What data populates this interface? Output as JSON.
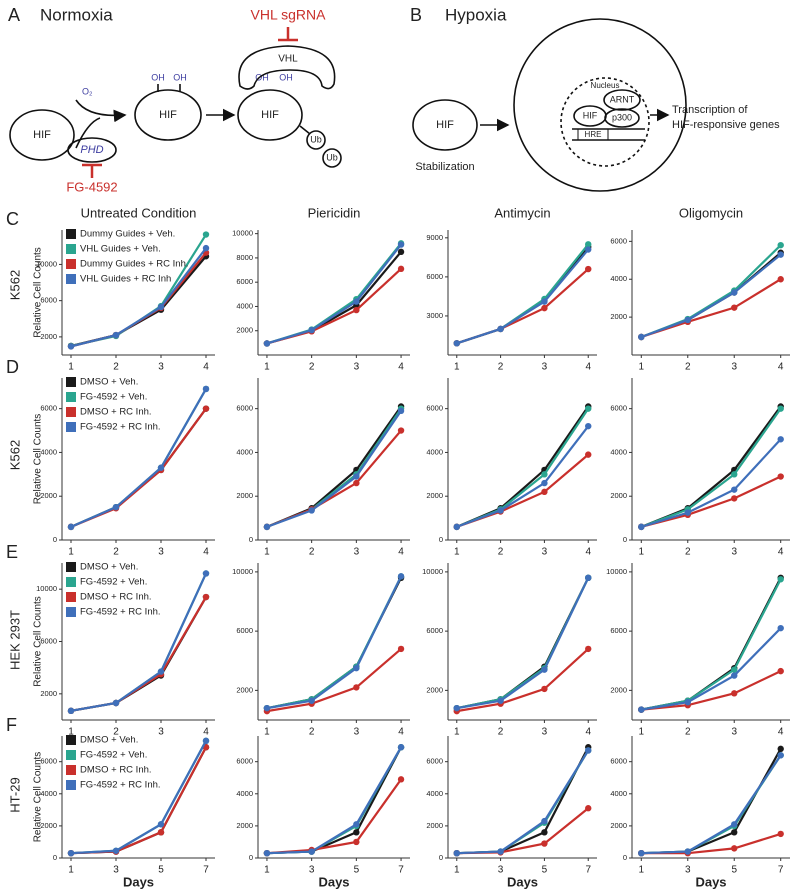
{
  "panels": {
    "a": {
      "letter": "A",
      "title": "Normoxia",
      "hif": [
        "HIF",
        "HIF",
        "HIF"
      ],
      "o2": "O₂",
      "oh": [
        "OH",
        "OH",
        "OH",
        "OH"
      ],
      "vhl": "VHL",
      "sgrna": "VHL sgRNA",
      "ub": [
        "Ub",
        "Ub"
      ],
      "phd": "PHD",
      "drug": "FG-4592"
    },
    "b": {
      "letter": "B",
      "title": "Hypoxia",
      "hif": [
        "HIF",
        "HIF"
      ],
      "stabilization": "Stabilization",
      "nucleus": "Nucleus",
      "arnt": "ARNT",
      "p300": "p300",
      "hre": "HRE",
      "transcription": [
        "Transcription of",
        "HIF-responsive genes"
      ]
    }
  },
  "rows": [
    {
      "letter": "C",
      "cell_line": "K562"
    },
    {
      "letter": "D",
      "cell_line": "K562"
    },
    {
      "letter": "E",
      "cell_line": "HEK 293T"
    },
    {
      "letter": "F",
      "cell_line": "HT-29"
    }
  ],
  "chart_data": [
    {
      "type": "line",
      "title": "Untreated Condition",
      "ylabel": "Relative Cell Counts",
      "legend": "upper left",
      "x": [
        1,
        2,
        3,
        4
      ],
      "xlim": [
        0.8,
        4.2
      ],
      "xticks": [
        1,
        2,
        3,
        4
      ],
      "ylim": [
        0,
        13800
      ],
      "yticks": [
        2000,
        6000,
        10000
      ],
      "series": [
        {
          "name": "Dummy Guides + Veh.",
          "color": "#1a1a1a",
          "values": [
            1000,
            2200,
            5000,
            10900
          ]
        },
        {
          "name": "VHL Guides + Veh.",
          "color": "#2aa58f",
          "values": [
            1000,
            2100,
            5400,
            13300
          ]
        },
        {
          "name": "Dummy Guides + RC Inh.",
          "color": "#c9302c",
          "values": [
            950,
            2200,
            5200,
            11300
          ]
        },
        {
          "name": "VHL Guides + RC Inh",
          "color": "#3f6fba",
          "values": [
            950,
            2200,
            5300,
            11800
          ]
        }
      ]
    },
    {
      "type": "line",
      "title": "Piericidin",
      "x": [
        1,
        2,
        3,
        4
      ],
      "xlim": [
        0.8,
        4.2
      ],
      "xticks": [
        1,
        2,
        3,
        4
      ],
      "ylim": [
        0,
        10300
      ],
      "yticks": [
        2000,
        4000,
        6000,
        8000,
        10000
      ],
      "series": [
        {
          "color": "#1a1a1a",
          "values": [
            950,
            2000,
            4100,
            8500
          ]
        },
        {
          "color": "#2aa58f",
          "values": [
            950,
            2100,
            4600,
            9200
          ]
        },
        {
          "color": "#c9302c",
          "values": [
            950,
            1950,
            3700,
            7100
          ]
        },
        {
          "color": "#3f6fba",
          "values": [
            950,
            2050,
            4400,
            9100
          ]
        }
      ]
    },
    {
      "type": "line",
      "title": "Antimycin",
      "x": [
        1,
        2,
        3,
        4
      ],
      "xlim": [
        0.8,
        4.2
      ],
      "xticks": [
        1,
        2,
        3,
        4
      ],
      "ylim": [
        0,
        9600
      ],
      "yticks": [
        3000,
        6000,
        9000
      ],
      "series": [
        {
          "color": "#1a1a1a",
          "values": [
            900,
            2000,
            4200,
            8300
          ]
        },
        {
          "color": "#2aa58f",
          "values": [
            900,
            2000,
            4300,
            8500
          ]
        },
        {
          "color": "#c9302c",
          "values": [
            900,
            2000,
            3600,
            6600
          ]
        },
        {
          "color": "#3f6fba",
          "values": [
            900,
            2000,
            4100,
            8100
          ]
        }
      ]
    },
    {
      "type": "line",
      "title": "Oligomycin",
      "x": [
        1,
        2,
        3,
        4
      ],
      "xlim": [
        0.8,
        4.2
      ],
      "xticks": [
        1,
        2,
        3,
        4
      ],
      "ylim": [
        0,
        6600
      ],
      "yticks": [
        2000,
        4000,
        6000
      ],
      "series": [
        {
          "color": "#1a1a1a",
          "values": [
            950,
            1850,
            3300,
            5400
          ]
        },
        {
          "color": "#2aa58f",
          "values": [
            950,
            1900,
            3400,
            5800
          ]
        },
        {
          "color": "#c9302c",
          "values": [
            950,
            1750,
            2500,
            4000
          ]
        },
        {
          "color": "#3f6fba",
          "values": [
            950,
            1850,
            3300,
            5300
          ]
        }
      ]
    },
    {
      "type": "line",
      "ylabel": "Relative Cell Counts",
      "legend": "upper left",
      "x": [
        1,
        2,
        3,
        4
      ],
      "xlim": [
        0.8,
        4.2
      ],
      "xticks": [
        1,
        2,
        3,
        4
      ],
      "ylim": [
        0,
        7400
      ],
      "yticks": [
        0,
        2000,
        4000,
        6000
      ],
      "series": [
        {
          "name": "DMSO + Veh.",
          "color": "#1a1a1a",
          "values": [
            600,
            1500,
            3200,
            6000
          ]
        },
        {
          "name": "FG-4592 + Veh.",
          "color": "#2aa58f",
          "values": [
            600,
            1500,
            3300,
            6900
          ]
        },
        {
          "name": "DMSO + RC Inh.",
          "color": "#c9302c",
          "values": [
            600,
            1450,
            3200,
            6000
          ]
        },
        {
          "name": "FG-4592 + RC Inh.",
          "color": "#3f6fba",
          "values": [
            600,
            1500,
            3300,
            6900
          ]
        }
      ]
    },
    {
      "type": "line",
      "x": [
        1,
        2,
        3,
        4
      ],
      "xlim": [
        0.8,
        4.2
      ],
      "xticks": [
        1,
        2,
        3,
        4
      ],
      "ylim": [
        0,
        7400
      ],
      "yticks": [
        0,
        2000,
        4000,
        6000
      ],
      "series": [
        {
          "color": "#1a1a1a",
          "values": [
            600,
            1450,
            3200,
            6100
          ]
        },
        {
          "color": "#2aa58f",
          "values": [
            600,
            1400,
            3000,
            6000
          ]
        },
        {
          "color": "#c9302c",
          "values": [
            600,
            1400,
            2600,
            5000
          ]
        },
        {
          "color": "#3f6fba",
          "values": [
            600,
            1350,
            2900,
            5900
          ]
        }
      ]
    },
    {
      "type": "line",
      "x": [
        1,
        2,
        3,
        4
      ],
      "xlim": [
        0.8,
        4.2
      ],
      "xticks": [
        1,
        2,
        3,
        4
      ],
      "ylim": [
        0,
        7400
      ],
      "yticks": [
        0,
        2000,
        4000,
        6000
      ],
      "series": [
        {
          "color": "#1a1a1a",
          "values": [
            600,
            1450,
            3200,
            6100
          ]
        },
        {
          "color": "#2aa58f",
          "values": [
            600,
            1400,
            3000,
            6000
          ]
        },
        {
          "color": "#c9302c",
          "values": [
            600,
            1300,
            2200,
            3900
          ]
        },
        {
          "color": "#3f6fba",
          "values": [
            600,
            1350,
            2600,
            5200
          ]
        }
      ]
    },
    {
      "type": "line",
      "x": [
        1,
        2,
        3,
        4
      ],
      "xlim": [
        0.8,
        4.2
      ],
      "xticks": [
        1,
        2,
        3,
        4
      ],
      "ylim": [
        0,
        7400
      ],
      "yticks": [
        0,
        2000,
        4000,
        6000
      ],
      "series": [
        {
          "color": "#1a1a1a",
          "values": [
            600,
            1450,
            3200,
            6100
          ]
        },
        {
          "color": "#2aa58f",
          "values": [
            600,
            1400,
            3000,
            6000
          ]
        },
        {
          "color": "#c9302c",
          "values": [
            600,
            1150,
            1900,
            2900
          ]
        },
        {
          "color": "#3f6fba",
          "values": [
            600,
            1250,
            2300,
            4600
          ]
        }
      ]
    },
    {
      "type": "line",
      "ylabel": "Relative Cell Counts",
      "legend": "upper left",
      "x": [
        1,
        2,
        3,
        4
      ],
      "xlim": [
        0.8,
        4.2
      ],
      "xticks": [
        1,
        2,
        3,
        4
      ],
      "ylim": [
        0,
        12000
      ],
      "yticks": [
        2000,
        6000,
        10000
      ],
      "series": [
        {
          "name": "DMSO + Veh.",
          "color": "#1a1a1a",
          "values": [
            700,
            1300,
            3400,
            9400
          ]
        },
        {
          "name": "FG-4592 + Veh.",
          "color": "#2aa58f",
          "values": [
            700,
            1300,
            3700,
            11200
          ]
        },
        {
          "name": "DMSO + RC Inh.",
          "color": "#c9302c",
          "values": [
            700,
            1300,
            3500,
            9400
          ]
        },
        {
          "name": "FG-4592 + RC Inh.",
          "color": "#3f6fba",
          "values": [
            700,
            1300,
            3700,
            11200
          ]
        }
      ]
    },
    {
      "type": "line",
      "x": [
        1,
        2,
        3,
        4
      ],
      "xlim": [
        0.8,
        4.2
      ],
      "xticks": [
        1,
        2,
        3,
        4
      ],
      "ylim": [
        0,
        10600
      ],
      "yticks": [
        2000,
        6000,
        10000
      ],
      "series": [
        {
          "color": "#1a1a1a",
          "values": [
            800,
            1400,
            3600,
            9600
          ]
        },
        {
          "color": "#2aa58f",
          "values": [
            800,
            1400,
            3600,
            9700
          ]
        },
        {
          "color": "#c9302c",
          "values": [
            600,
            1100,
            2200,
            4800
          ]
        },
        {
          "color": "#3f6fba",
          "values": [
            800,
            1300,
            3500,
            9700
          ]
        }
      ]
    },
    {
      "type": "line",
      "x": [
        1,
        2,
        3,
        4
      ],
      "xlim": [
        0.8,
        4.2
      ],
      "xticks": [
        1,
        2,
        3,
        4
      ],
      "ylim": [
        0,
        10600
      ],
      "yticks": [
        2000,
        6000,
        10000
      ],
      "series": [
        {
          "color": "#1a1a1a",
          "values": [
            800,
            1400,
            3600,
            9600
          ]
        },
        {
          "color": "#2aa58f",
          "values": [
            800,
            1400,
            3500,
            9600
          ]
        },
        {
          "color": "#c9302c",
          "values": [
            600,
            1100,
            2100,
            4800
          ]
        },
        {
          "color": "#3f6fba",
          "values": [
            800,
            1300,
            3400,
            9600
          ]
        }
      ]
    },
    {
      "type": "line",
      "x": [
        1,
        2,
        3,
        4
      ],
      "xlim": [
        0.8,
        4.2
      ],
      "xticks": [
        1,
        2,
        3,
        4
      ],
      "ylim": [
        0,
        10600
      ],
      "yticks": [
        2000,
        6000,
        10000
      ],
      "series": [
        {
          "color": "#1a1a1a",
          "values": [
            700,
            1300,
            3500,
            9600
          ]
        },
        {
          "color": "#2aa58f",
          "values": [
            700,
            1300,
            3400,
            9500
          ]
        },
        {
          "color": "#c9302c",
          "values": [
            700,
            1000,
            1800,
            3300
          ]
        },
        {
          "color": "#3f6fba",
          "values": [
            700,
            1200,
            3000,
            6200
          ]
        }
      ]
    },
    {
      "type": "line",
      "ylabel": "Relative Cell Counts",
      "xlabel": "Days",
      "legend": "upper left",
      "x": [
        1,
        3,
        5,
        7
      ],
      "xlim": [
        0.6,
        7.4
      ],
      "xticks": [
        1,
        3,
        5,
        7
      ],
      "ylim": [
        0,
        7600
      ],
      "yticks": [
        0,
        2000,
        4000,
        6000
      ],
      "series": [
        {
          "name": "DMSO + Veh.",
          "color": "#1a1a1a",
          "values": [
            300,
            400,
            1600,
            6900
          ]
        },
        {
          "name": "FG-4592 + Veh.",
          "color": "#2aa58f",
          "values": [
            300,
            450,
            2100,
            7300
          ]
        },
        {
          "name": "DMSO + RC Inh.",
          "color": "#c9302c",
          "values": [
            300,
            400,
            1600,
            6900
          ]
        },
        {
          "name": "FG-4592 + RC Inh.",
          "color": "#3f6fba",
          "values": [
            300,
            450,
            2100,
            7300
          ]
        }
      ]
    },
    {
      "type": "line",
      "xlabel": "Days",
      "x": [
        1,
        3,
        5,
        7
      ],
      "xlim": [
        0.6,
        7.4
      ],
      "xticks": [
        1,
        3,
        5,
        7
      ],
      "ylim": [
        0,
        7600
      ],
      "yticks": [
        0,
        2000,
        4000,
        6000
      ],
      "series": [
        {
          "color": "#1a1a1a",
          "values": [
            300,
            400,
            1600,
            6900
          ]
        },
        {
          "color": "#2aa58f",
          "values": [
            300,
            400,
            2000,
            6900
          ]
        },
        {
          "color": "#c9302c",
          "values": [
            300,
            500,
            1000,
            4900
          ]
        },
        {
          "color": "#3f6fba",
          "values": [
            300,
            400,
            2100,
            6900
          ]
        }
      ]
    },
    {
      "type": "line",
      "xlabel": "Days",
      "x": [
        1,
        3,
        5,
        7
      ],
      "xlim": [
        0.6,
        7.4
      ],
      "xticks": [
        1,
        3,
        5,
        7
      ],
      "ylim": [
        0,
        7600
      ],
      "yticks": [
        0,
        2000,
        4000,
        6000
      ],
      "series": [
        {
          "color": "#1a1a1a",
          "values": [
            300,
            400,
            1600,
            6900
          ]
        },
        {
          "color": "#2aa58f",
          "values": [
            300,
            400,
            2200,
            6700
          ]
        },
        {
          "color": "#c9302c",
          "values": [
            300,
            350,
            900,
            3100
          ]
        },
        {
          "color": "#3f6fba",
          "values": [
            300,
            400,
            2300,
            6700
          ]
        }
      ]
    },
    {
      "type": "line",
      "xlabel": "Days",
      "x": [
        1,
        3,
        5,
        7
      ],
      "xlim": [
        0.6,
        7.4
      ],
      "xticks": [
        1,
        3,
        5,
        7
      ],
      "ylim": [
        0,
        7600
      ],
      "yticks": [
        0,
        2000,
        4000,
        6000
      ],
      "series": [
        {
          "color": "#1a1a1a",
          "values": [
            300,
            400,
            1600,
            6800
          ]
        },
        {
          "color": "#2aa58f",
          "values": [
            300,
            400,
            2000,
            6400
          ]
        },
        {
          "color": "#c9302c",
          "values": [
            300,
            300,
            600,
            1500
          ]
        },
        {
          "color": "#3f6fba",
          "values": [
            300,
            400,
            2100,
            6400
          ]
        }
      ]
    }
  ]
}
